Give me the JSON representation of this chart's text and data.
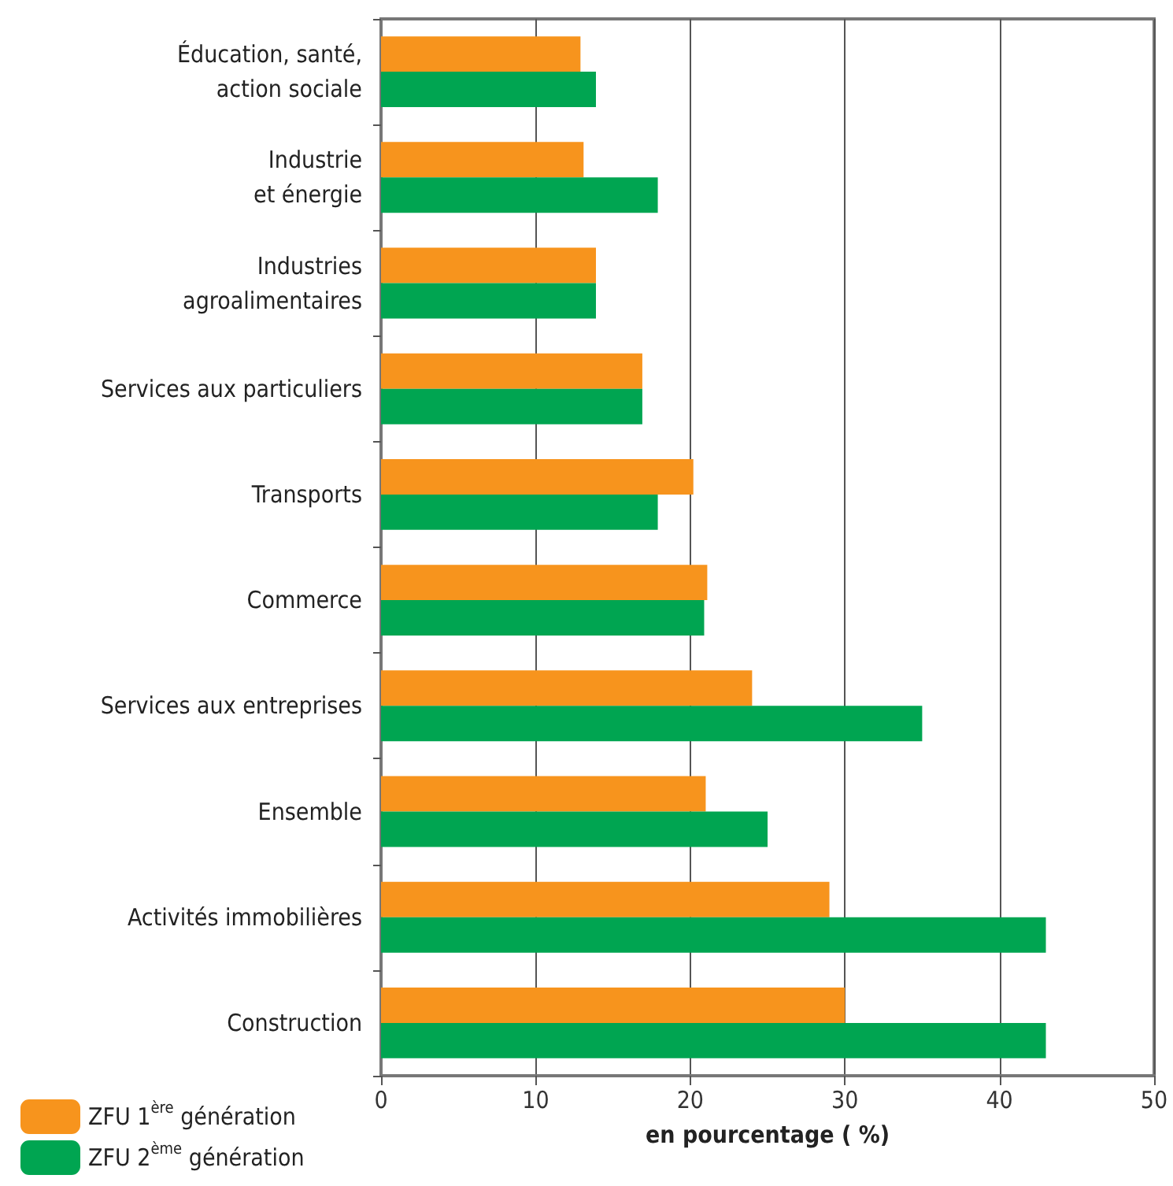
{
  "chart_data": {
    "type": "bar",
    "orientation": "horizontal",
    "categories": [
      "Éducation, santé,\naction sociale",
      "Industrie\net énergie",
      "Industries\nagroalimentaires",
      "Services aux particuliers",
      "Transports",
      "Commerce",
      "Services aux entreprises",
      "Ensemble",
      "Activités immobilières",
      "Construction"
    ],
    "series": [
      {
        "name": "ZFU 1$^{ère}$ génération",
        "color": "#f7941d",
        "values": [
          12.9,
          13.1,
          13.9,
          16.9,
          20.2,
          21.1,
          24,
          21,
          29,
          30
        ]
      },
      {
        "name": "ZFU 2$^{ème}$ génération",
        "color": "#00a551",
        "values": [
          13.9,
          17.9,
          13.9,
          16.9,
          17.9,
          20.9,
          35,
          25,
          43,
          43
        ]
      }
    ],
    "xlabel": "en pourcentage ( %)",
    "xlim": [
      0,
      50
    ],
    "xticks": [
      0,
      10,
      20,
      30,
      40,
      50
    ],
    "grid": "x",
    "legend": "bottom left"
  }
}
